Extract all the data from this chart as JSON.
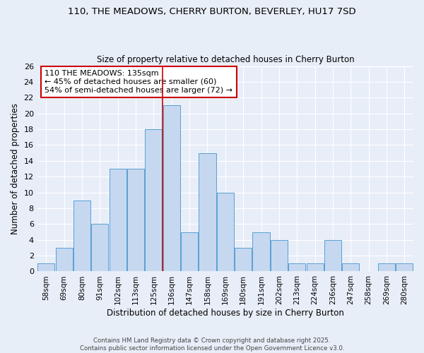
{
  "title_line1": "110, THE MEADOWS, CHERRY BURTON, BEVERLEY, HU17 7SD",
  "title_line2": "Size of property relative to detached houses in Cherry Burton",
  "xlabel": "Distribution of detached houses by size in Cherry Burton",
  "ylabel": "Number of detached properties",
  "categories": [
    "58sqm",
    "69sqm",
    "80sqm",
    "91sqm",
    "102sqm",
    "113sqm",
    "125sqm",
    "136sqm",
    "147sqm",
    "158sqm",
    "169sqm",
    "180sqm",
    "191sqm",
    "202sqm",
    "213sqm",
    "224sqm",
    "236sqm",
    "247sqm",
    "258sqm",
    "269sqm",
    "280sqm"
  ],
  "values": [
    1,
    3,
    9,
    6,
    13,
    13,
    18,
    21,
    5,
    15,
    10,
    3,
    5,
    4,
    1,
    1,
    4,
    1,
    0,
    1,
    1
  ],
  "bar_color": "#c5d8f0",
  "bar_edge_color": "#5a9fd4",
  "vline_x": 6.5,
  "vline_color": "#cc0000",
  "annotation_title": "110 THE MEADOWS: 135sqm",
  "annotation_line2": "← 45% of detached houses are smaller (60)",
  "annotation_line3": "54% of semi-detached houses are larger (72) →",
  "annotation_box_color": "#cc0000",
  "annotation_text_color": "#000000",
  "ylim": [
    0,
    26
  ],
  "yticks": [
    0,
    2,
    4,
    6,
    8,
    10,
    12,
    14,
    16,
    18,
    20,
    22,
    24,
    26
  ],
  "footer_line1": "Contains HM Land Registry data © Crown copyright and database right 2025.",
  "footer_line2": "Contains public sector information licensed under the Open Government Licence v3.0.",
  "bg_color": "#e8eef8",
  "grid_color": "#ffffff"
}
